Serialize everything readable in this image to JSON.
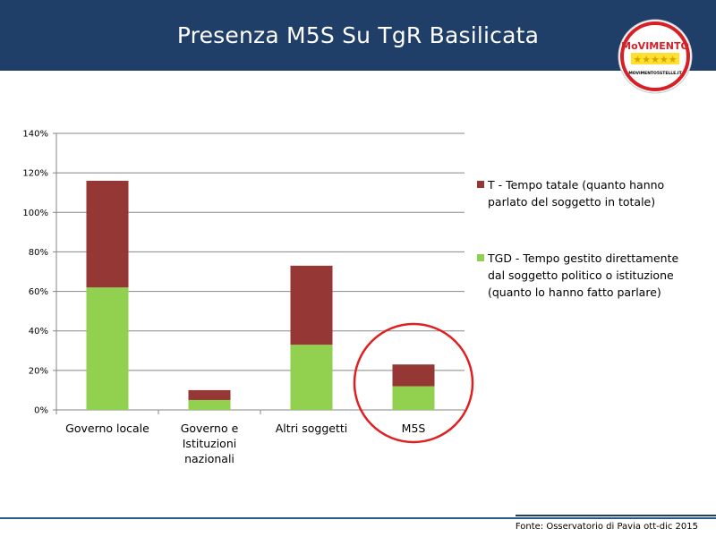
{
  "header": {
    "title": "Presenza M5S Su TgR Basilicata"
  },
  "logo": {
    "top_text": "MoVIMENTO",
    "bottom_text": "MOVIMENTO5STELLE.IT",
    "stars": "★★★★★",
    "icon": "movimento-5-stelle-logo-icon"
  },
  "chart_data": {
    "type": "bar",
    "stacked": true,
    "categories": [
      "Governo locale",
      "Governo e Istituzioni nazionali",
      "Altri soggetti",
      "M5S"
    ],
    "category_label_lines": [
      [
        "Governo locale"
      ],
      [
        "Governo e",
        "Istituzioni",
        "nazionali"
      ],
      [
        "Altri soggetti"
      ],
      [
        "M5S"
      ]
    ],
    "series": [
      {
        "name": "TGD - Tempo gestito direttamente dal soggetto politico o istituzione (quanto lo hanno fatto parlare)",
        "values": [
          62,
          5,
          33,
          12
        ],
        "color": "#92d050"
      },
      {
        "name": "T - Tempo tatale (quanto hanno parlato del soggetto in totale)",
        "values": [
          54,
          5,
          40,
          11
        ],
        "color": "#953735"
      }
    ],
    "y_ticks": [
      "0%",
      "20%",
      "40%",
      "60%",
      "80%",
      "100%",
      "120%",
      "140%"
    ],
    "ylim": [
      0,
      140
    ],
    "grid": true,
    "legend_position": "right",
    "highlight_category": "M5S",
    "highlight_color": "#e02020"
  },
  "legend": [
    {
      "label": "T - Tempo tatale (quanto hanno parlato del soggetto in totale)",
      "color": "#953735"
    },
    {
      "label": "TGD - Tempo gestito direttamente dal soggetto politico o istituzione (quanto lo hanno fatto parlare)",
      "color": "#92d050"
    }
  ],
  "footer": {
    "source": "Fonte: Osservatorio di Pavia ott-dic 2015"
  }
}
